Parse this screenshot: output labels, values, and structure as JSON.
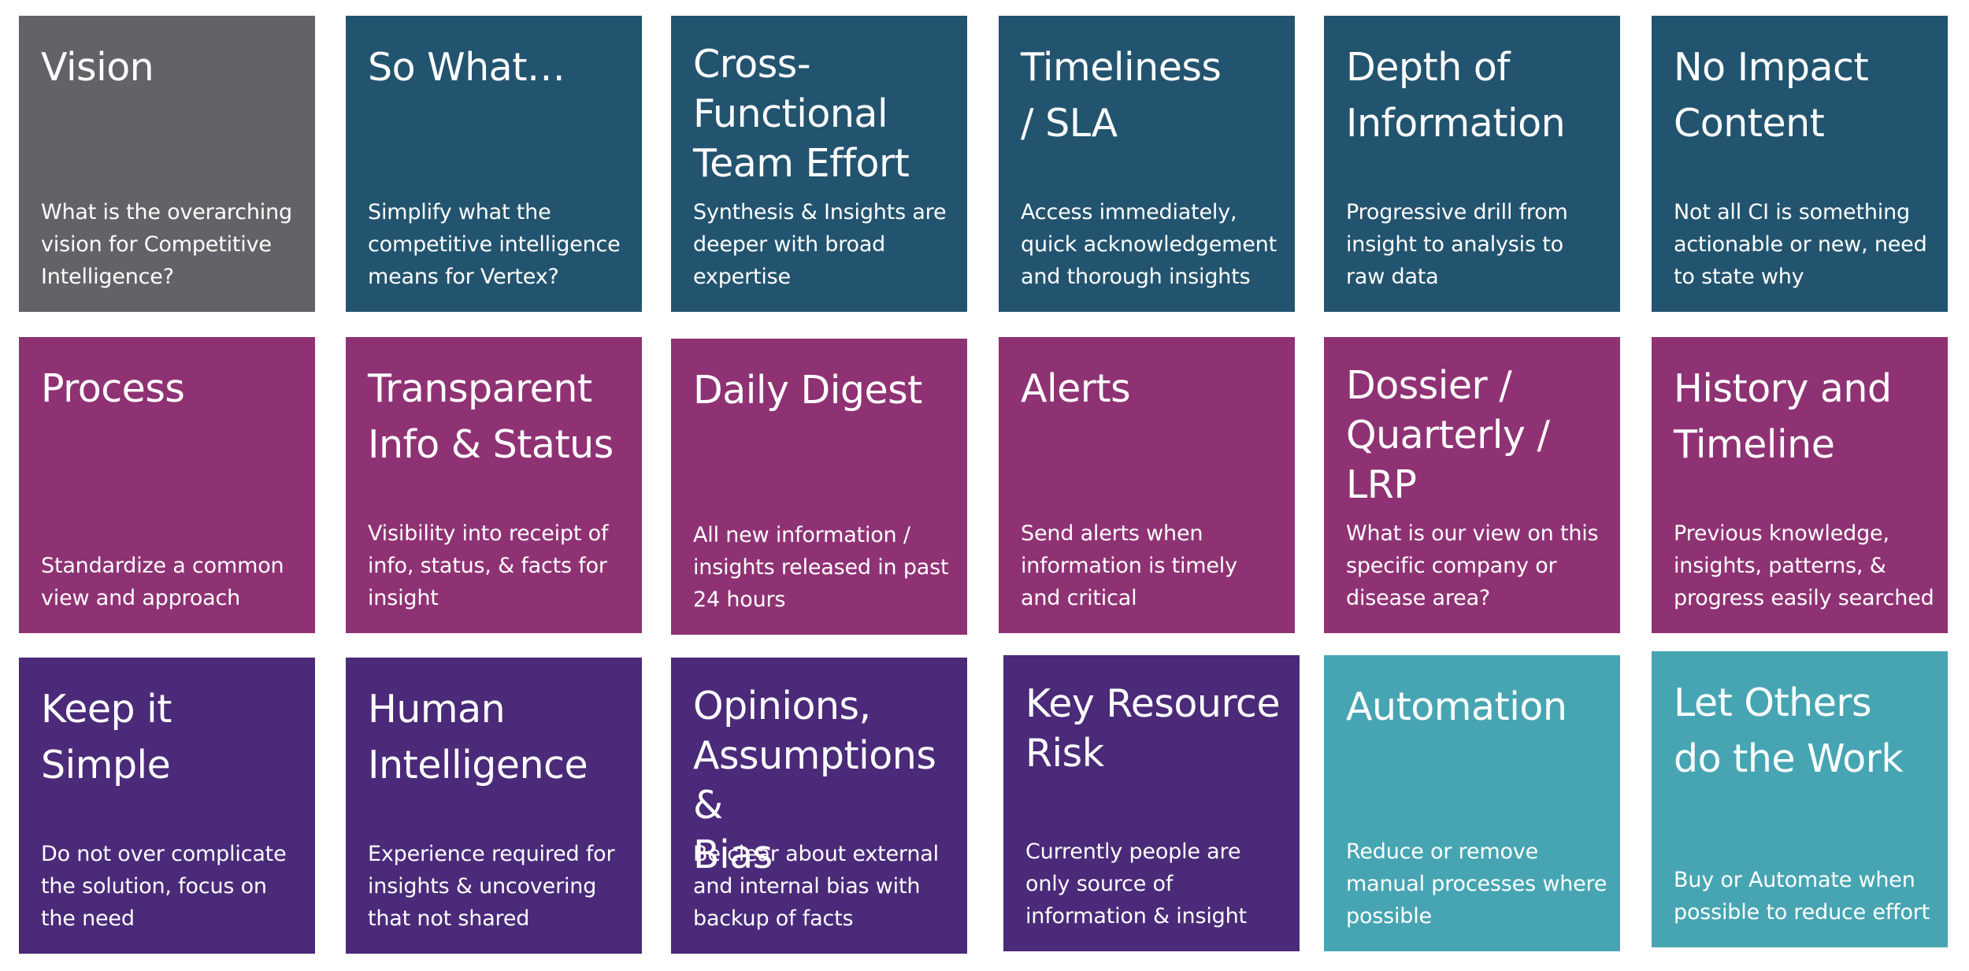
{
  "colors": {
    "gray": "#616366",
    "navy": "#23546F",
    "magenta": "#8F3274",
    "purple": "#4A2A79",
    "teal": "#47A5B3",
    "text": "#FFFFFF"
  },
  "tiles": [
    {
      "title": "Vision",
      "desc": "What is the overarching vision for Competitive Intelligence?"
    },
    {
      "title": "So What…",
      "desc": "Simplify what the competitive intelligence means for Vertex?"
    },
    {
      "title": "Cross-\nFunctional\nTeam Effort",
      "desc": "Synthesis & Insights are deeper with broad expertise"
    },
    {
      "title": "Timeliness\n/ SLA",
      "desc": "Access immediately, quick acknowledgement and thorough insights"
    },
    {
      "title": "Depth of\nInformation",
      "desc": "Progressive drill from insight to analysis to raw data"
    },
    {
      "title": "No Impact\nContent",
      "desc": "Not all CI is something actionable or new, need to state why"
    },
    {
      "title": "Process",
      "desc": "Standardize a common view and approach"
    },
    {
      "title": "Transparent\nInfo & Status",
      "desc": "Visibility into receipt of info, status, & facts for insight"
    },
    {
      "title": "Daily Digest",
      "desc": "All new information / insights released in past 24 hours"
    },
    {
      "title": "Alerts",
      "desc": "Send alerts when information is timely and critical"
    },
    {
      "title": "Dossier /\nQuarterly / LRP",
      "desc": "What is our view on this specific company or disease area?"
    },
    {
      "title": "History and\nTimeline",
      "desc": "Previous knowledge, insights, patterns, & progress easily searched"
    },
    {
      "title": "Keep it\nSimple",
      "desc": "Do not over complicate the solution, focus on the need"
    },
    {
      "title": "Human\nIntelligence",
      "desc": "Experience required for insights & uncovering that not shared"
    },
    {
      "title": "Opinions,\nAssumptions &\nBias",
      "desc": "Be clear about external and internal bias with backup of facts"
    },
    {
      "title": "Key Resource\nRisk",
      "desc": "Currently people are only source of information & insight"
    },
    {
      "title": "Automation",
      "desc": "Reduce or remove manual processes where possible"
    },
    {
      "title": "Let Others\ndo the Work",
      "desc": "Buy or Automate when possible to reduce effort"
    }
  ]
}
